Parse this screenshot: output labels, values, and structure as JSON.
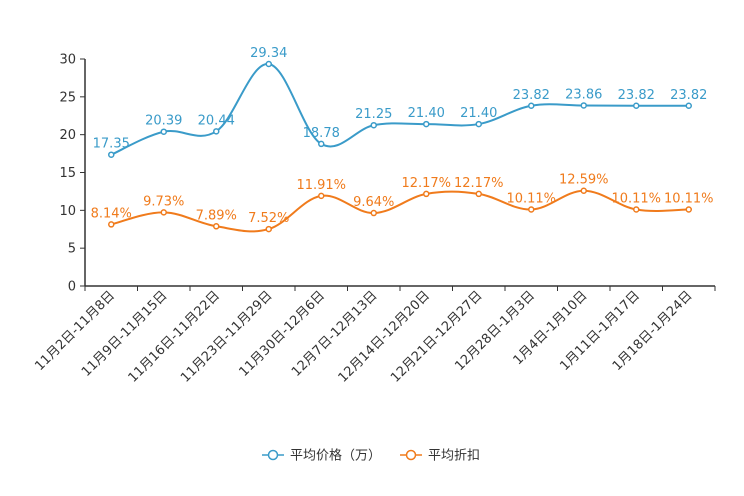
{
  "chart_data": {
    "type": "line",
    "title": "",
    "xlabel": "",
    "ylabel": "",
    "ylim": [
      0,
      30
    ],
    "yticks": [
      0,
      5,
      10,
      15,
      20,
      25,
      30
    ],
    "grid": false,
    "legend_position": "bottom-center",
    "categories": [
      "11月2日-11月8日",
      "11月9日-11月15日",
      "11月16日-11月22日",
      "11月23日-11月29日",
      "11月30日-12月6日",
      "12月7日-12月13日",
      "12月14日-12月20日",
      "12月21日-12月27日",
      "12月28日-1月3日",
      "1月4日-1月10日",
      "1月11日-1月17日",
      "1月18日-1月24日"
    ],
    "series": [
      {
        "name": "平均价格（万）",
        "color": "#3a9bc9",
        "values": [
          17.35,
          20.39,
          20.44,
          29.34,
          18.78,
          21.25,
          21.4,
          21.4,
          23.82,
          23.86,
          23.82,
          23.82
        ],
        "labels": [
          "17.35",
          "20.39",
          "20.44",
          "29.34",
          "18.78",
          "21.25",
          "21.40",
          "21.40",
          "23.82",
          "23.86",
          "23.82",
          "23.82"
        ]
      },
      {
        "name": "平均折扣",
        "color": "#f07b1c",
        "values": [
          8.14,
          9.73,
          7.89,
          7.52,
          11.91,
          9.64,
          12.17,
          12.17,
          10.11,
          12.59,
          10.11,
          10.11
        ],
        "labels": [
          "8.14%",
          "9.73%",
          "7.89%",
          "7.52%",
          "11.91%",
          "9.64%",
          "12.17%",
          "12.17%",
          "10.11%",
          "12.59%",
          "10.11%",
          "10.11%"
        ]
      }
    ]
  }
}
